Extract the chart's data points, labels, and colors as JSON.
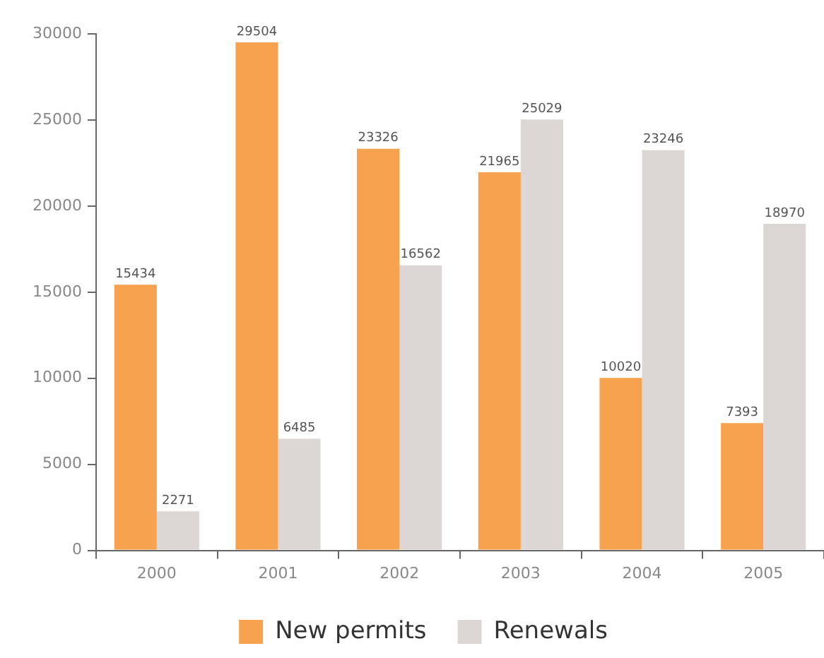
{
  "chart_data": {
    "type": "bar",
    "categories": [
      "2000",
      "2001",
      "2002",
      "2003",
      "2004",
      "2005"
    ],
    "series": [
      {
        "name": "New permits",
        "color": "#f7a24f",
        "values": [
          15434,
          29504,
          23326,
          21965,
          10020,
          7393
        ]
      },
      {
        "name": "Renewals",
        "color": "#dcd7d5",
        "values": [
          2271,
          6485,
          16562,
          25029,
          23246,
          18970
        ]
      }
    ],
    "ylim": [
      0,
      30000
    ],
    "yticks": [
      0,
      5000,
      10000,
      15000,
      20000,
      25000,
      30000
    ],
    "data_labels": true,
    "legend": "bottom",
    "grid": false
  }
}
